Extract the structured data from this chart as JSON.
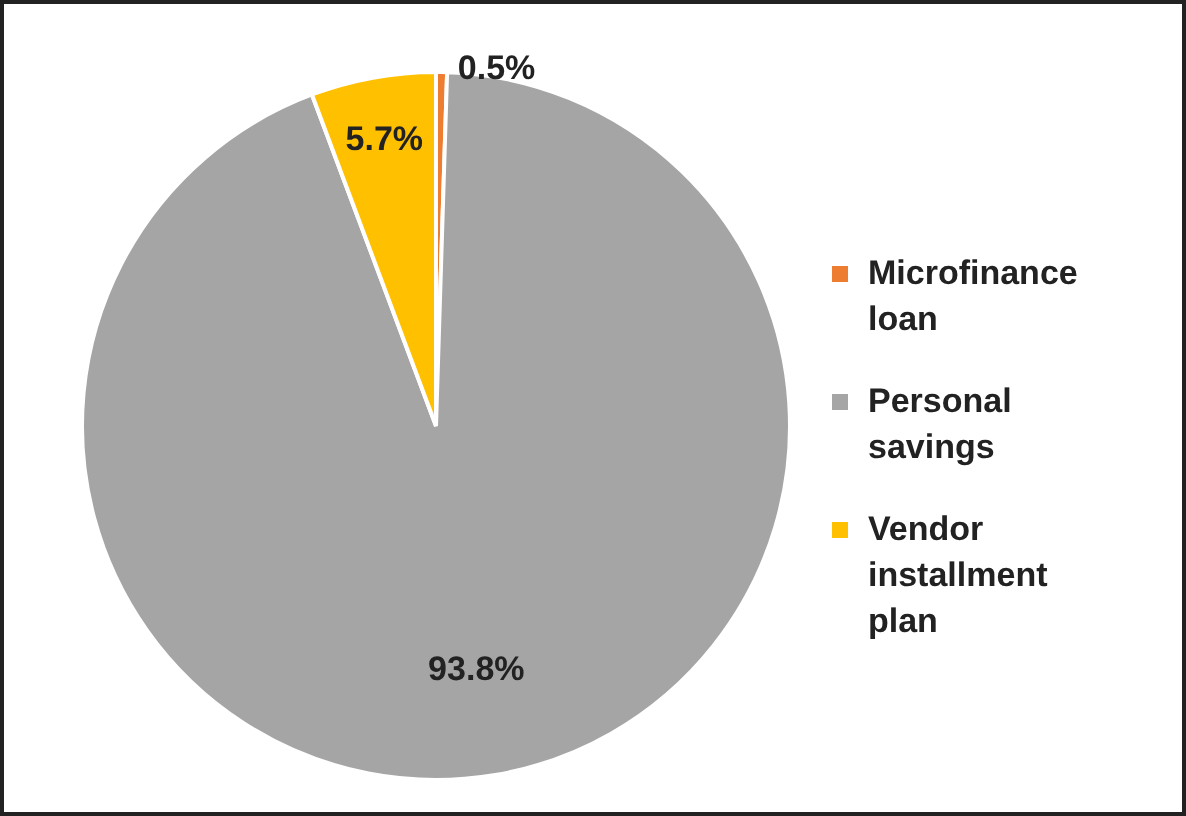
{
  "chart_data": {
    "type": "pie",
    "categories": [
      "Microfinance loan",
      "Personal savings",
      "Vendor installment plan"
    ],
    "values": [
      0.5,
      93.8,
      5.7
    ],
    "colors": [
      "#ed7d31",
      "#a5a5a5",
      "#ffc000"
    ],
    "value_labels": [
      "0.5%",
      "93.8%",
      "5.7%"
    ],
    "legend": "right"
  }
}
